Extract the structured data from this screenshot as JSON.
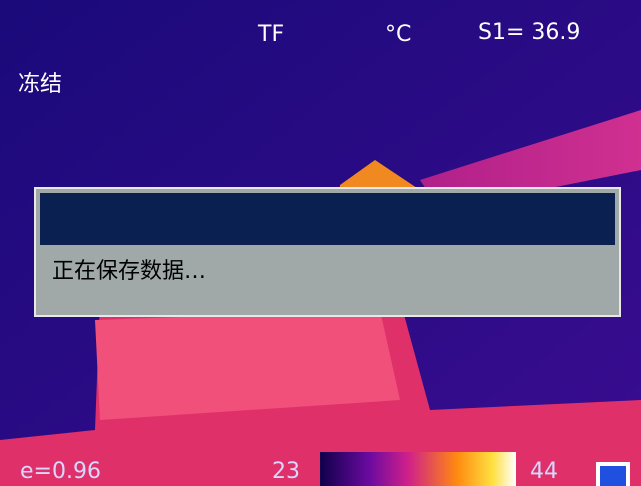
{
  "status_bar": {
    "storage": "TF",
    "unit": "°C",
    "spot": "S1= 36.9"
  },
  "mode": "冻结",
  "dialog": {
    "message": "正在保存数据…"
  },
  "footer": {
    "emissivity": "e=0.96",
    "scale_min": 23,
    "scale_max": 44
  }
}
